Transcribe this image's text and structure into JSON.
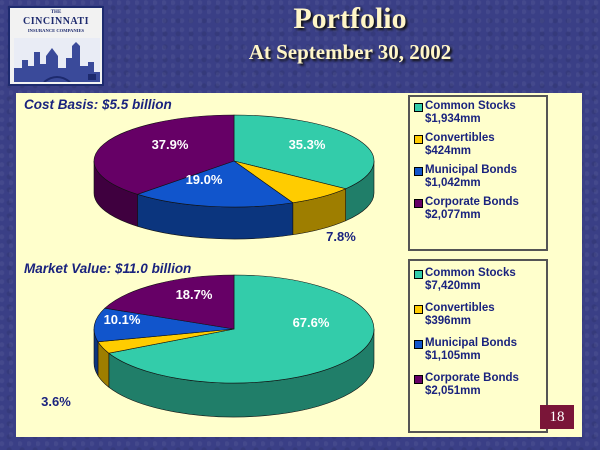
{
  "logo": {
    "line1": "THE",
    "line2": "CINCINNATI",
    "line3": "INSURANCE COMPANIES"
  },
  "title": "Portfolio",
  "subtitle": "At September 30, 2002",
  "page_number": "18",
  "colors": {
    "common_stocks": "#33ccaa",
    "convertibles": "#ffcc00",
    "municipal_bonds": "#1155cc",
    "corporate_bonds": "#660066"
  },
  "chart_data": [
    {
      "type": "pie",
      "title": "Cost Basis: $5.5 billion",
      "categories": [
        "Common Stocks",
        "Convertibles",
        "Municipal Bonds",
        "Corporate Bonds"
      ],
      "values": [
        35.3,
        7.8,
        19.0,
        37.9
      ],
      "value_labels": [
        "35.3%",
        "7.8%",
        "19.0%",
        "37.9%"
      ],
      "amounts": [
        "$1,934mm",
        "$424mm",
        "$1,042mm",
        "$2,077mm"
      ],
      "legend_position": "right"
    },
    {
      "type": "pie",
      "title": "Market Value: $11.0 billion",
      "categories": [
        "Common Stocks",
        "Convertibles",
        "Municipal Bonds",
        "Corporate Bonds"
      ],
      "values": [
        67.6,
        3.6,
        10.1,
        18.7
      ],
      "value_labels": [
        "67.6%",
        "3.6%",
        "10.1%",
        "18.7%"
      ],
      "amounts": [
        "$7,420mm",
        "$396mm",
        "$1,105mm",
        "$2,051mm"
      ],
      "legend_position": "right"
    }
  ]
}
